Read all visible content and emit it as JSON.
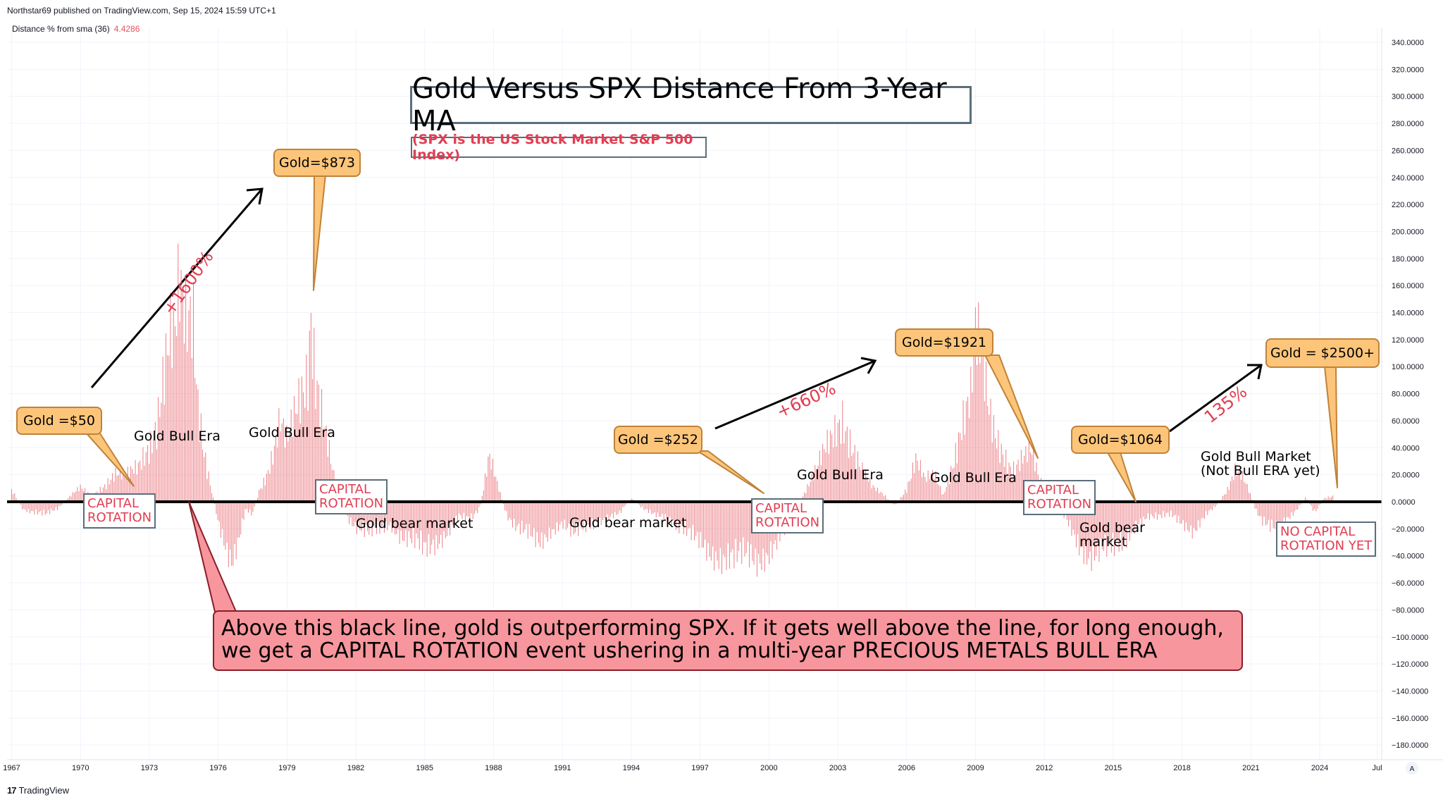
{
  "header": {
    "published": "Northstar69 published on TradingView.com, Sep 15, 2024 15:59 UTC+1",
    "indicator_name": "Distance % from sma (36)",
    "indicator_value": "4.4286"
  },
  "footer": {
    "brand": "TradingView",
    "brand_mark": "17"
  },
  "annotations": {
    "title": "Gold Versus SPX Distance From 3-Year MA",
    "subtitle": "(SPX is the US Stock Market S&P 500 Index)",
    "gold_50": "Gold =$50",
    "gold_873": "Gold=$873",
    "gold_252": "Gold =$252",
    "gold_1921": "Gold=$1921",
    "gold_1064": "Gold=$1064",
    "gold_2500": "Gold = $2500+",
    "rot1_a": "CAPITAL",
    "rot1_b": "ROTATION",
    "rot2_a": "CAPITAL",
    "rot2_b": "ROTATION",
    "rot3_a": "CAPITAL",
    "rot3_b": "ROTATION",
    "rot4_a": "CAPITAL",
    "rot4_b": "ROTATION",
    "rot5_a": "NO CAPITAL",
    "rot5_b": "ROTATION YET",
    "bull1": "Gold Bull Era",
    "bull2": "Gold Bull Era",
    "bull3": "Gold Bull Era",
    "bull4": "Gold Bull Era",
    "bull5_a": "Gold Bull Market",
    "bull5_b": "(Not Bull ERA yet)",
    "bear1": "Gold bear market",
    "bear2": "Gold bear market",
    "bear3_a": "Gold bear",
    "bear3_b": "market",
    "pct1": "+1600%",
    "pct2": "+660%",
    "pct3": "135%",
    "note_line1": "Above this black line, gold is outperforming SPX. If it gets well above the line, for long enough,",
    "note_line2": "we get a CAPITAL ROTATION event ushering in a multi-year PRECIOUS METALS BULL ERA"
  },
  "colors": {
    "series": "#e5535c",
    "zero_line": "#000000",
    "gold_fill": "#fcc57a",
    "note_fill": "#f7969d",
    "rotation_text": "#e03e52"
  },
  "chart_data": {
    "type": "bar",
    "series": [
      {
        "values": [
          [
            1967.0,
            8
          ],
          [
            1967.5,
            -5
          ],
          [
            1968.0,
            -8
          ],
          [
            1968.5,
            -10
          ],
          [
            1969.0,
            -5
          ],
          [
            1969.5,
            3
          ],
          [
            1970.0,
            10
          ],
          [
            1970.5,
            5
          ],
          [
            1971.0,
            12
          ],
          [
            1971.5,
            20
          ],
          [
            1972.0,
            18
          ],
          [
            1972.5,
            25
          ],
          [
            1973.0,
            45
          ],
          [
            1973.3,
            60
          ],
          [
            1973.6,
            95
          ],
          [
            1973.9,
            120
          ],
          [
            1974.1,
            110
          ],
          [
            1974.3,
            145
          ],
          [
            1974.6,
            120
          ],
          [
            1974.9,
            138
          ],
          [
            1975.1,
            80
          ],
          [
            1975.4,
            40
          ],
          [
            1975.7,
            10
          ],
          [
            1976.0,
            -15
          ],
          [
            1976.3,
            -30
          ],
          [
            1976.6,
            -40
          ],
          [
            1976.9,
            -25
          ],
          [
            1977.2,
            -5
          ],
          [
            1977.5,
            -10
          ],
          [
            1977.8,
            10
          ],
          [
            1978.1,
            20
          ],
          [
            1978.4,
            35
          ],
          [
            1978.7,
            55
          ],
          [
            1979.0,
            40
          ],
          [
            1979.3,
            60
          ],
          [
            1979.6,
            80
          ],
          [
            1979.9,
            100
          ],
          [
            1980.05,
            157
          ],
          [
            1980.2,
            110
          ],
          [
            1980.4,
            85
          ],
          [
            1980.6,
            60
          ],
          [
            1980.8,
            40
          ],
          [
            1981.0,
            20
          ],
          [
            1981.3,
            5
          ],
          [
            1981.6,
            -10
          ],
          [
            1982.0,
            -20
          ],
          [
            1982.5,
            -25
          ],
          [
            1983.0,
            -20
          ],
          [
            1983.5,
            -15
          ],
          [
            1984.0,
            -25
          ],
          [
            1984.5,
            -30
          ],
          [
            1985.0,
            -38
          ],
          [
            1985.5,
            -30
          ],
          [
            1986.0,
            -20
          ],
          [
            1986.5,
            -10
          ],
          [
            1987.0,
            -15
          ],
          [
            1987.4,
            -5
          ],
          [
            1987.8,
            33
          ],
          [
            1988.2,
            10
          ],
          [
            1988.6,
            -10
          ],
          [
            1989.0,
            -20
          ],
          [
            1989.5,
            -25
          ],
          [
            1990.0,
            -30
          ],
          [
            1990.5,
            -20
          ],
          [
            1991.0,
            -15
          ],
          [
            1991.5,
            -25
          ],
          [
            1992.0,
            -20
          ],
          [
            1992.5,
            -15
          ],
          [
            1993.0,
            -10
          ],
          [
            1993.5,
            -8
          ],
          [
            1994.0,
            3
          ],
          [
            1994.5,
            -5
          ],
          [
            1995.0,
            -8
          ],
          [
            1995.5,
            -10
          ],
          [
            1996.0,
            -20
          ],
          [
            1996.5,
            -25
          ],
          [
            1997.0,
            -28
          ],
          [
            1997.5,
            -35
          ],
          [
            1998.0,
            -42
          ],
          [
            1998.5,
            -45
          ],
          [
            1999.0,
            -40
          ],
          [
            1999.5,
            -42
          ],
          [
            2000.0,
            -35
          ],
          [
            2000.5,
            -25
          ],
          [
            2001.0,
            -15
          ],
          [
            2001.5,
            5
          ],
          [
            2002.0,
            20
          ],
          [
            2002.4,
            35
          ],
          [
            2002.8,
            50
          ],
          [
            2003.2,
            68
          ],
          [
            2003.6,
            45
          ],
          [
            2004.0,
            25
          ],
          [
            2004.5,
            10
          ],
          [
            2005.0,
            5
          ],
          [
            2005.5,
            -3
          ],
          [
            2006.0,
            10
          ],
          [
            2006.4,
            30
          ],
          [
            2006.8,
            15
          ],
          [
            2007.2,
            20
          ],
          [
            2007.6,
            5
          ],
          [
            2008.0,
            30
          ],
          [
            2008.4,
            60
          ],
          [
            2008.8,
            75
          ],
          [
            2009.0,
            115
          ],
          [
            2009.3,
            95
          ],
          [
            2009.6,
            65
          ],
          [
            2009.9,
            50
          ],
          [
            2010.2,
            40
          ],
          [
            2010.6,
            25
          ],
          [
            2011.0,
            30
          ],
          [
            2011.4,
            35
          ],
          [
            2011.8,
            15
          ],
          [
            2012.2,
            5
          ],
          [
            2012.6,
            -3
          ],
          [
            2013.0,
            -15
          ],
          [
            2013.5,
            -30
          ],
          [
            2014.0,
            -38
          ],
          [
            2014.5,
            -35
          ],
          [
            2015.0,
            -38
          ],
          [
            2015.5,
            -30
          ],
          [
            2016.0,
            -15
          ],
          [
            2016.5,
            -10
          ],
          [
            2017.0,
            -12
          ],
          [
            2017.5,
            -10
          ],
          [
            2018.0,
            -15
          ],
          [
            2018.5,
            -20
          ],
          [
            2019.0,
            -10
          ],
          [
            2019.5,
            -3
          ],
          [
            2020.0,
            10
          ],
          [
            2020.3,
            22
          ],
          [
            2020.6,
            18
          ],
          [
            2020.9,
            8
          ],
          [
            2021.2,
            -5
          ],
          [
            2021.5,
            -15
          ],
          [
            2021.8,
            -20
          ],
          [
            2022.2,
            -22
          ],
          [
            2022.6,
            -12
          ],
          [
            2023.0,
            -5
          ],
          [
            2023.4,
            3
          ],
          [
            2023.8,
            -8
          ],
          [
            2024.2,
            3
          ],
          [
            2024.6,
            4.4286
          ]
        ]
      }
    ],
    "title": "",
    "xlabel": "",
    "ylabel": "",
    "xlim": [
      1966.8,
      2026.7
    ],
    "ylim": [
      -190,
      350
    ],
    "x_ticks": [
      "1967",
      "1970",
      "1973",
      "1976",
      "1979",
      "1982",
      "1985",
      "1988",
      "1991",
      "1994",
      "1997",
      "2000",
      "2003",
      "2006",
      "2009",
      "2012",
      "2015",
      "2018",
      "2021",
      "2024",
      "Jul"
    ],
    "x_tick_values": [
      1967,
      1970,
      1973,
      1976,
      1979,
      1982,
      1985,
      1988,
      1991,
      1994,
      1997,
      2000,
      2003,
      2006,
      2009,
      2012,
      2015,
      2018,
      2021,
      2024,
      2026.5
    ],
    "y_ticks": [
      "340.0000",
      "320.0000",
      "300.0000",
      "280.0000",
      "260.0000",
      "240.0000",
      "220.0000",
      "200.0000",
      "180.0000",
      "160.0000",
      "140.0000",
      "120.0000",
      "100.0000",
      "80.0000",
      "60.0000",
      "40.0000",
      "20.0000",
      "0.0000",
      "−20.0000",
      "−40.0000",
      "−60.0000",
      "−80.0000",
      "−100.0000",
      "−120.0000",
      "−140.0000",
      "−160.0000",
      "−180.0000"
    ],
    "y_tick_values": [
      340,
      320,
      300,
      280,
      260,
      240,
      220,
      200,
      180,
      160,
      140,
      120,
      100,
      80,
      60,
      40,
      20,
      0,
      -20,
      -40,
      -60,
      -80,
      -100,
      -120,
      -140,
      -160,
      -180
    ],
    "grid": true,
    "zero_line": true
  }
}
